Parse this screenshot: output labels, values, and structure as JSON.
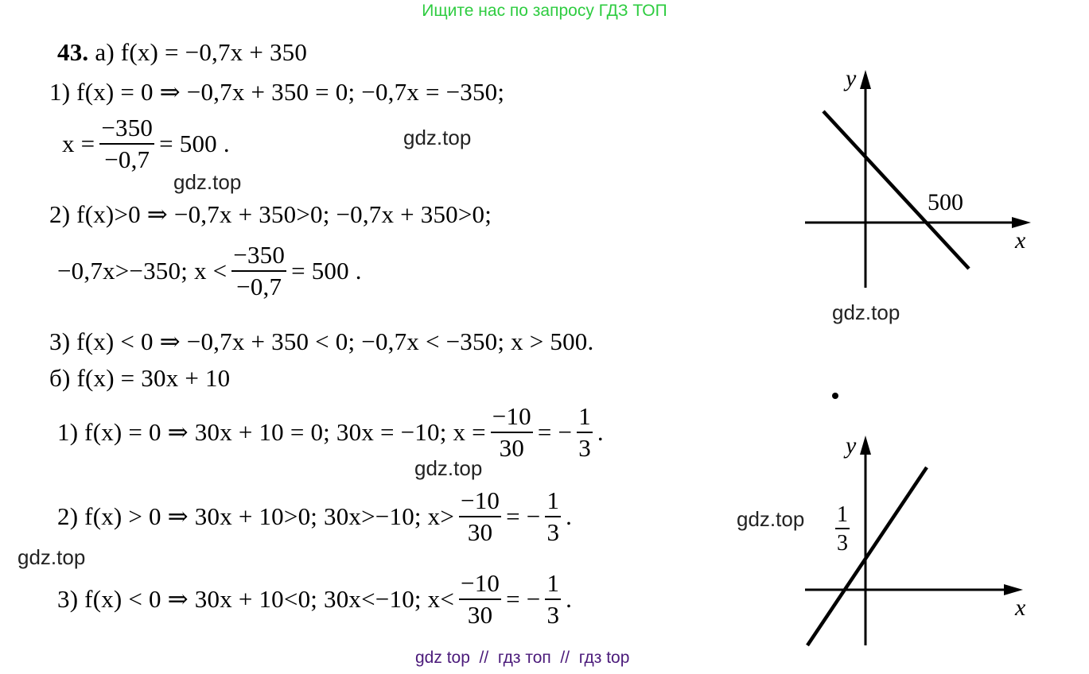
{
  "header": {
    "text": "Ищите нас по запросу ГДЗ ТОП",
    "color": "#2ecc40"
  },
  "footer": {
    "text": "gdz top  //  гдз топ  //  гдз top",
    "color": "#4b1a7a"
  },
  "watermark": "gdz.top",
  "part_a": {
    "number": "43.",
    "title": "а) f(x) = −0,7x + 350",
    "step1": "1) f(x) = 0 ⇒ −0,7x + 350 = 0; −0,7x = −350;",
    "step1_result": {
      "lhs": "x =",
      "num": "−350",
      "den": "−0,7",
      "rhs": "= 500 ."
    },
    "step2": "2) f(x)>0 ⇒ −0,7x + 350>0; −0,7x + 350>0;",
    "step2_result": {
      "lhs": "−0,7x>−350;  x <",
      "num": "−350",
      "den": "−0,7",
      "rhs": "= 500 ."
    },
    "step3": "3) f(x) < 0 ⇒ −0,7x + 350 < 0; −0,7x < −350; x > 500."
  },
  "part_b": {
    "title": "б) f(x) = 30x + 10",
    "step1": {
      "lhs": "1) f(x) = 0 ⇒ 30x + 10 = 0; 30x = −10; x =",
      "num": "−10",
      "den": "30",
      "mid": "= −",
      "num2": "1",
      "den2": "3",
      "end": "."
    },
    "step2": {
      "lhs": "2) f(x) > 0 ⇒ 30x + 10>0; 30x>−10; x>",
      "num": "−10",
      "den": "30",
      "mid": "= −",
      "num2": "1",
      "den2": "3",
      "end": "."
    },
    "step3": {
      "lhs": "3) f(x) < 0 ⇒ 30x + 10<0; 30x<−10; x<",
      "num": "−10",
      "den": "30",
      "mid": "= −",
      "num2": "1",
      "den2": "3",
      "end": "."
    }
  },
  "graph_a": {
    "x_label": "x",
    "y_label": "y",
    "intercept_label": "500"
  },
  "graph_b": {
    "x_label": "x",
    "y_label": "y",
    "intercept_num": "1",
    "intercept_den": "3"
  }
}
